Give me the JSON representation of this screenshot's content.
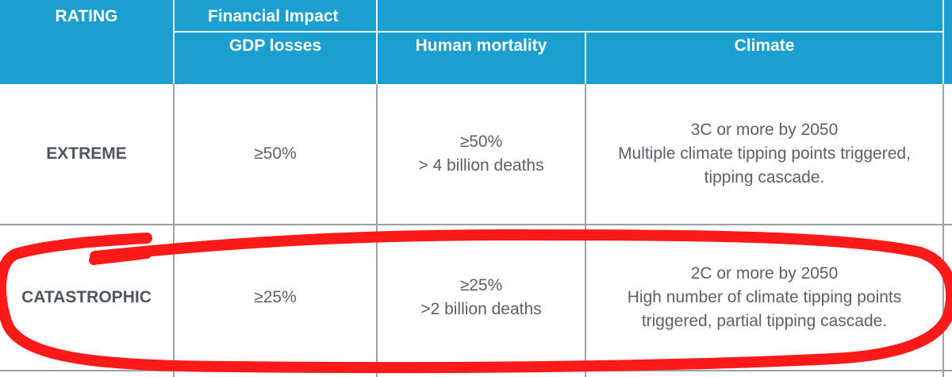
{
  "header": {
    "rating": "RATING",
    "financial_impact": "Financial Impact",
    "gdp_losses": "GDP losses",
    "human_mortality": "Human mortality",
    "climate": "Climate"
  },
  "rows": [
    {
      "rating": "EXTREME",
      "gdp": "≥50%",
      "mortality": [
        "≥50%",
        "> 4 billion deaths"
      ],
      "climate": [
        "3C or more by 2050",
        "Multiple climate tipping points triggered,",
        "tipping cascade."
      ]
    },
    {
      "rating": "CATASTROPHIC",
      "gdp": "≥25%",
      "mortality": [
        "≥25%",
        ">2 billion deaths"
      ],
      "climate": [
        "2C or more by 2050",
        "High number of climate tipping points",
        "triggered, partial tipping cascade."
      ]
    }
  ],
  "colors": {
    "header_bg": "#1a9fcf",
    "header_text": "#ffffff",
    "body_text": "#5b6168",
    "annotation": "#ff1a1a"
  }
}
